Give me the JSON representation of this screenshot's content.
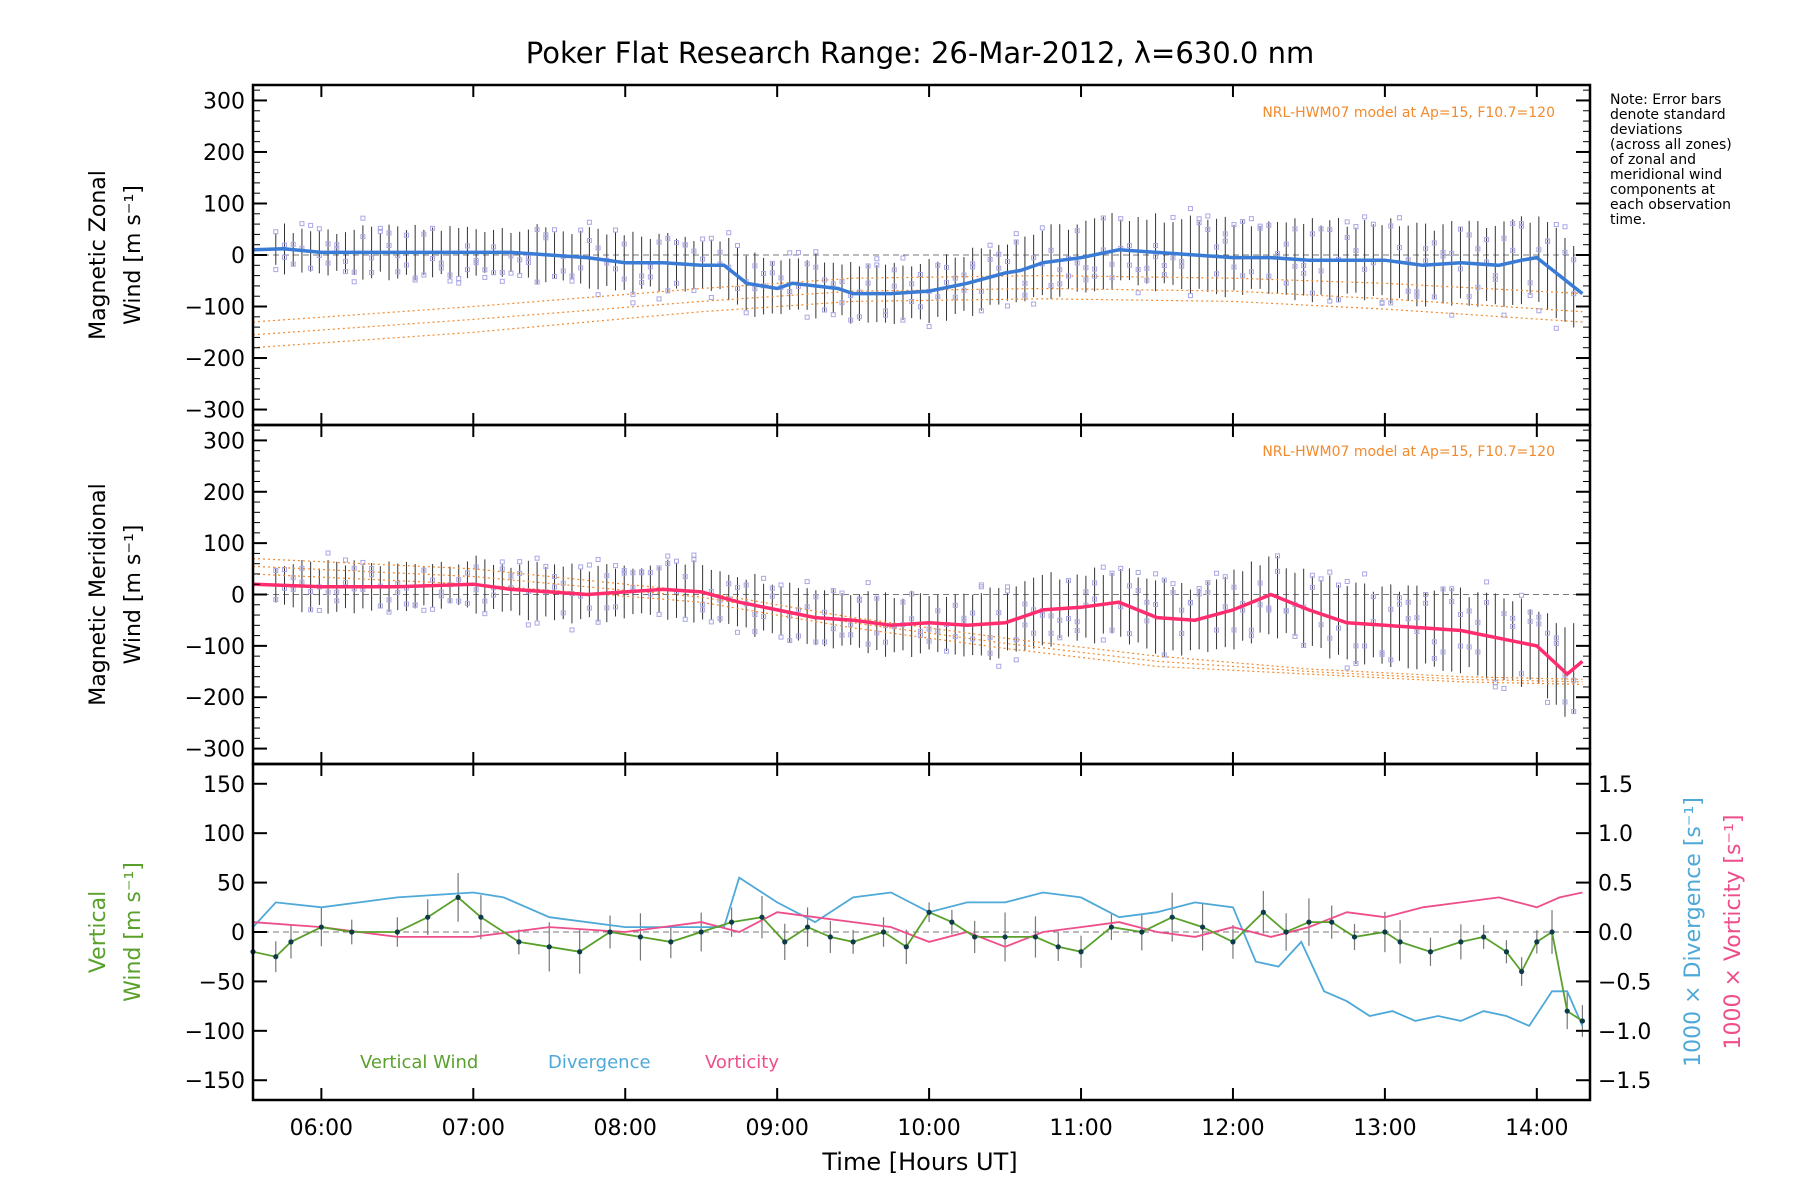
{
  "title": "Poker Flat Research Range: 26-Mar-2012, λ=630.0 nm",
  "note_lines": [
    "Note: Error bars",
    "denote standard",
    "deviations",
    "(across all zones)",
    "of zonal and",
    "meridional wind",
    "components at",
    "each observation",
    "time."
  ],
  "colors": {
    "zonal": "#3a7bd5",
    "zonal_dark": "#1f2fd0",
    "meridional": "#ff2d6e",
    "model": "#f28a2e",
    "scatter": "#a9a7e6",
    "vertical": "#5aa02c",
    "divergence": "#4ea9d9",
    "vorticity": "#ee4e8a",
    "errorbar": "#333333"
  },
  "chart_data": [
    {
      "type": "line",
      "panel": "zonal",
      "ylabel_lines": [
        "Magnetic Zonal",
        "Wind [m s⁻¹]"
      ],
      "ylim": [
        -330,
        330
      ],
      "yticks": [
        "300",
        "200",
        "100",
        "0",
        "−100",
        "−200",
        "−300"
      ],
      "ytick_values": [
        300,
        200,
        100,
        0,
        -100,
        -200,
        -300
      ],
      "annotation": "NRL-HWM07 model at Ap=15, F10.7=120",
      "series": [
        {
          "name": "",
          "x": [
            5.55,
            5.75,
            6.0,
            6.25,
            6.5,
            6.75,
            7.0,
            7.25,
            7.5,
            7.75,
            8.0,
            8.25,
            8.5,
            8.65,
            8.8,
            9.0,
            9.1,
            9.25,
            9.4,
            9.5,
            9.75,
            10.0,
            10.25,
            10.5,
            10.6,
            10.75,
            11.0,
            11.25,
            11.5,
            11.75,
            12.0,
            12.25,
            12.5,
            12.75,
            13.0,
            13.25,
            13.5,
            13.75,
            13.9,
            14.0,
            14.15,
            14.3
          ],
          "y": [
            10,
            12,
            5,
            5,
            5,
            5,
            5,
            5,
            0,
            -5,
            -15,
            -15,
            -20,
            -20,
            -55,
            -65,
            -55,
            -60,
            -65,
            -75,
            -75,
            -70,
            -55,
            -35,
            -30,
            -15,
            -5,
            10,
            5,
            0,
            -5,
            -5,
            -10,
            -10,
            -10,
            -20,
            -15,
            -20,
            -10,
            -5,
            -40,
            -75
          ]
        }
      ],
      "model_curves": [
        {
          "x": [
            5.55,
            7.0,
            8.5,
            9.5,
            10.75,
            12.0,
            13.0,
            14.3
          ],
          "y": [
            -180,
            -150,
            -110,
            -90,
            -85,
            -90,
            -105,
            -130
          ]
        },
        {
          "x": [
            5.55,
            7.0,
            8.5,
            9.5,
            10.75,
            12.0,
            13.0,
            14.3
          ],
          "y": [
            -155,
            -125,
            -90,
            -70,
            -65,
            -70,
            -85,
            -110
          ]
        },
        {
          "x": [
            5.55,
            7.0,
            8.5,
            9.5,
            10.75,
            12.0,
            13.0,
            14.3
          ],
          "y": [
            -130,
            -100,
            -65,
            -45,
            -40,
            -45,
            -55,
            -75
          ]
        }
      ]
    },
    {
      "type": "line",
      "panel": "meridional",
      "ylabel_lines": [
        "Magnetic Meridional",
        "Wind [m s⁻¹]"
      ],
      "ylim": [
        -330,
        330
      ],
      "yticks": [
        "300",
        "200",
        "100",
        "0",
        "−100",
        "−200",
        "−300"
      ],
      "ytick_values": [
        300,
        200,
        100,
        0,
        -100,
        -200,
        -300
      ],
      "annotation": "NRL-HWM07 model at Ap=15, F10.7=120",
      "series": [
        {
          "name": "",
          "x": [
            5.55,
            6.0,
            6.5,
            7.0,
            7.25,
            7.5,
            7.75,
            8.0,
            8.25,
            8.5,
            8.75,
            9.0,
            9.25,
            9.5,
            9.75,
            10.0,
            10.25,
            10.5,
            10.75,
            11.0,
            11.25,
            11.5,
            11.75,
            12.0,
            12.25,
            12.5,
            12.75,
            13.0,
            13.25,
            13.5,
            13.75,
            14.0,
            14.2,
            14.3
          ],
          "y": [
            20,
            15,
            15,
            20,
            10,
            5,
            0,
            5,
            10,
            5,
            -15,
            -30,
            -45,
            -50,
            -60,
            -55,
            -60,
            -55,
            -30,
            -25,
            -15,
            -45,
            -50,
            -30,
            0,
            -30,
            -55,
            -60,
            -65,
            -70,
            -85,
            -100,
            -155,
            -130
          ]
        }
      ],
      "model_curves": [
        {
          "x": [
            5.55,
            7.0,
            8.5,
            9.5,
            10.5,
            11.5,
            12.5,
            13.5,
            14.3
          ],
          "y": [
            70,
            50,
            5,
            -45,
            -85,
            -120,
            -145,
            -160,
            -165
          ]
        },
        {
          "x": [
            5.55,
            7.0,
            8.5,
            9.5,
            10.5,
            11.5,
            12.5,
            13.5,
            14.3
          ],
          "y": [
            55,
            35,
            -5,
            -55,
            -95,
            -130,
            -150,
            -165,
            -170
          ]
        },
        {
          "x": [
            5.55,
            7.0,
            8.5,
            9.5,
            10.5,
            11.5,
            12.5,
            13.5,
            14.3
          ],
          "y": [
            40,
            20,
            -15,
            -65,
            -105,
            -140,
            -155,
            -170,
            -175
          ]
        }
      ]
    },
    {
      "type": "line",
      "panel": "vertical",
      "ylabel_lines": [
        "Vertical",
        "Wind [m s⁻¹]"
      ],
      "ylim": [
        -170,
        170
      ],
      "yticks": [
        "150",
        "100",
        "50",
        "0",
        "−50",
        "−100",
        "−150"
      ],
      "ytick_values": [
        150,
        100,
        50,
        0,
        -50,
        -100,
        -150
      ],
      "y2label_lines": [
        "1000 × Divergence [s⁻¹]",
        "1000 × Vorticity [s⁻¹]"
      ],
      "y2lim": [
        -1.7,
        1.7
      ],
      "y2ticks": [
        "1.5",
        "1.0",
        "0.5",
        "0.0",
        "−0.5",
        "−1.0",
        "−1.5"
      ],
      "y2tick_values": [
        1.5,
        1.0,
        0.5,
        0.0,
        -0.5,
        -1.0,
        -1.5
      ],
      "legend": [
        "Vertical Wind",
        "Divergence",
        "Vorticity"
      ],
      "series": [
        {
          "name": "Vertical Wind",
          "x": [
            5.55,
            5.7,
            5.8,
            6.0,
            6.2,
            6.5,
            6.7,
            6.9,
            7.05,
            7.3,
            7.5,
            7.7,
            7.9,
            8.1,
            8.3,
            8.5,
            8.7,
            8.9,
            9.05,
            9.2,
            9.35,
            9.5,
            9.7,
            9.85,
            10.0,
            10.15,
            10.3,
            10.5,
            10.7,
            10.85,
            11.0,
            11.2,
            11.4,
            11.6,
            11.8,
            12.0,
            12.2,
            12.35,
            12.5,
            12.65,
            12.8,
            13.0,
            13.1,
            13.3,
            13.5,
            13.65,
            13.8,
            13.9,
            14.0,
            14.1,
            14.2,
            14.3
          ],
          "y": [
            -20,
            -25,
            -10,
            5,
            0,
            0,
            15,
            35,
            15,
            -10,
            -15,
            -20,
            0,
            -5,
            -10,
            0,
            10,
            15,
            -10,
            5,
            -5,
            -10,
            0,
            -15,
            20,
            10,
            -5,
            -5,
            -5,
            -15,
            -20,
            5,
            0,
            15,
            5,
            -10,
            20,
            0,
            10,
            10,
            -5,
            0,
            -10,
            -20,
            -10,
            -5,
            -20,
            -40,
            -10,
            0,
            -80,
            -90
          ]
        },
        {
          "name": "Divergence",
          "x": [
            5.55,
            5.7,
            6.0,
            6.5,
            7.0,
            7.2,
            7.5,
            8.0,
            8.5,
            8.65,
            8.75,
            9.0,
            9.25,
            9.5,
            9.75,
            10.0,
            10.25,
            10.5,
            10.75,
            11.0,
            11.25,
            11.5,
            11.75,
            12.0,
            12.15,
            12.3,
            12.45,
            12.6,
            12.75,
            12.9,
            13.05,
            13.2,
            13.35,
            13.5,
            13.65,
            13.8,
            13.95,
            14.1,
            14.2,
            14.3
          ],
          "y": [
            0.05,
            0.3,
            0.25,
            0.35,
            0.4,
            0.35,
            0.15,
            0.05,
            0.05,
            0.05,
            0.55,
            0.3,
            0.1,
            0.35,
            0.4,
            0.2,
            0.3,
            0.3,
            0.4,
            0.35,
            0.15,
            0.2,
            0.3,
            0.25,
            -0.3,
            -0.35,
            -0.1,
            -0.6,
            -0.7,
            -0.85,
            -0.8,
            -0.9,
            -0.85,
            -0.9,
            -0.8,
            -0.85,
            -0.95,
            -0.6,
            -0.6,
            -0.95
          ]
        },
        {
          "name": "Vorticity",
          "x": [
            5.55,
            6.0,
            6.5,
            7.0,
            7.5,
            8.0,
            8.5,
            8.75,
            9.0,
            9.25,
            9.5,
            9.75,
            10.0,
            10.25,
            10.5,
            10.75,
            11.0,
            11.25,
            11.5,
            11.75,
            12.0,
            12.25,
            12.5,
            12.75,
            13.0,
            13.25,
            13.5,
            13.75,
            14.0,
            14.15,
            14.3
          ],
          "y": [
            0.1,
            0.05,
            -0.05,
            -0.05,
            0.05,
            0.0,
            0.1,
            0.0,
            0.2,
            0.15,
            0.1,
            0.05,
            -0.1,
            0.0,
            -0.15,
            0.0,
            0.05,
            0.1,
            0.0,
            -0.05,
            0.05,
            -0.05,
            0.05,
            0.2,
            0.15,
            0.25,
            0.3,
            0.35,
            0.25,
            0.35,
            0.4
          ]
        }
      ]
    }
  ],
  "x_axis": {
    "label": "Time [Hours UT]",
    "range": [
      5.55,
      14.35
    ],
    "ticks": [
      "06:00",
      "07:00",
      "08:00",
      "09:00",
      "10:00",
      "11:00",
      "12:00",
      "13:00",
      "14:00"
    ],
    "tick_values": [
      6,
      7,
      8,
      9,
      10,
      11,
      12,
      13,
      14
    ]
  }
}
